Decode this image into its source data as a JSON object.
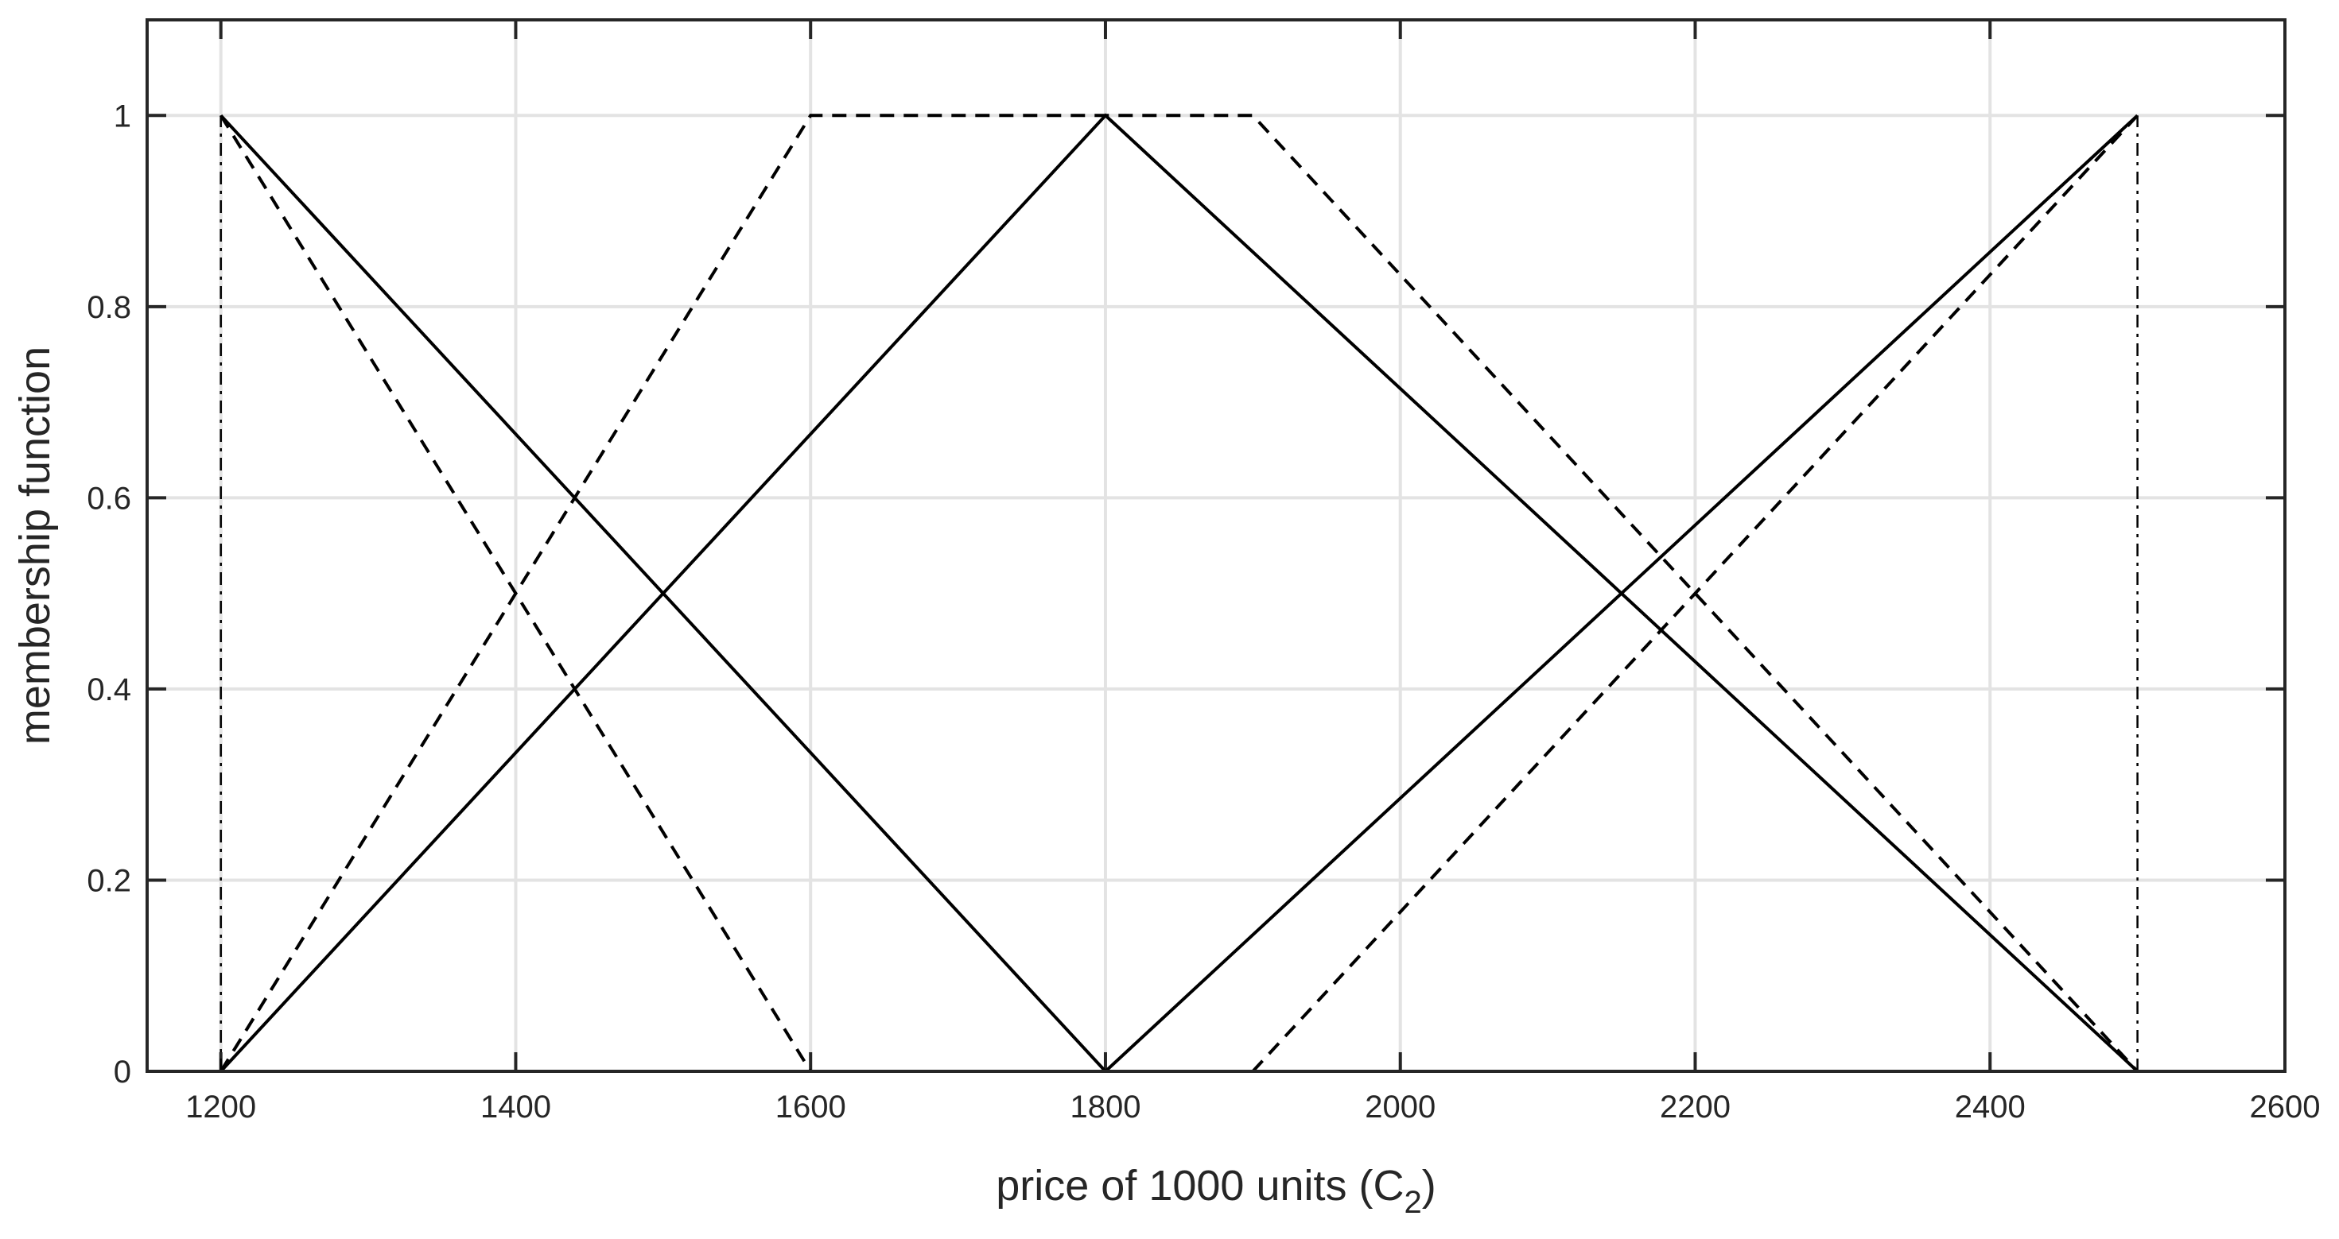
{
  "chart_data": {
    "type": "line",
    "title": "",
    "xlabel": "price of 1000 units (C",
    "xlabel_subscript": "2",
    "xlabel_suffix": ")",
    "ylabel": "membership function",
    "xlim": [
      1150,
      2600
    ],
    "ylim": [
      0,
      1.1
    ],
    "xticks": [
      1200,
      1400,
      1600,
      1800,
      2000,
      2200,
      2400,
      2600
    ],
    "yticks": [
      0,
      0.2,
      0.4,
      0.6,
      0.8,
      1
    ],
    "xtick_labels": [
      "1200",
      "1400",
      "1600",
      "1800",
      "2000",
      "2200",
      "2400",
      "2600"
    ],
    "ytick_labels": [
      "0",
      "0.2",
      "0.4",
      "0.6",
      "0.8",
      "1"
    ],
    "grid": true,
    "legend": "none",
    "series": [
      {
        "style": "solid",
        "color": "#000000",
        "x": [
          1200,
          1800
        ],
        "y": [
          1,
          0
        ]
      },
      {
        "style": "solid",
        "color": "#000000",
        "x": [
          1200,
          1800,
          2500
        ],
        "y": [
          0,
          1,
          0
        ]
      },
      {
        "style": "solid",
        "color": "#000000",
        "x": [
          1800,
          2500
        ],
        "y": [
          0,
          1
        ]
      },
      {
        "style": "dashed",
        "color": "#000000",
        "x": [
          1200,
          1600
        ],
        "y": [
          1,
          0
        ]
      },
      {
        "style": "dashed",
        "color": "#000000",
        "x": [
          1200,
          1600,
          1900,
          2500
        ],
        "y": [
          0,
          1,
          1,
          0
        ]
      },
      {
        "style": "dashed",
        "color": "#000000",
        "x": [
          1900,
          2500
        ],
        "y": [
          0,
          1
        ]
      },
      {
        "style": "dashdot",
        "color": "#000000",
        "x": [
          1200,
          1200
        ],
        "y": [
          0,
          1
        ]
      },
      {
        "style": "dashdot",
        "color": "#000000",
        "x": [
          2500,
          2500
        ],
        "y": [
          0,
          1
        ]
      }
    ]
  }
}
